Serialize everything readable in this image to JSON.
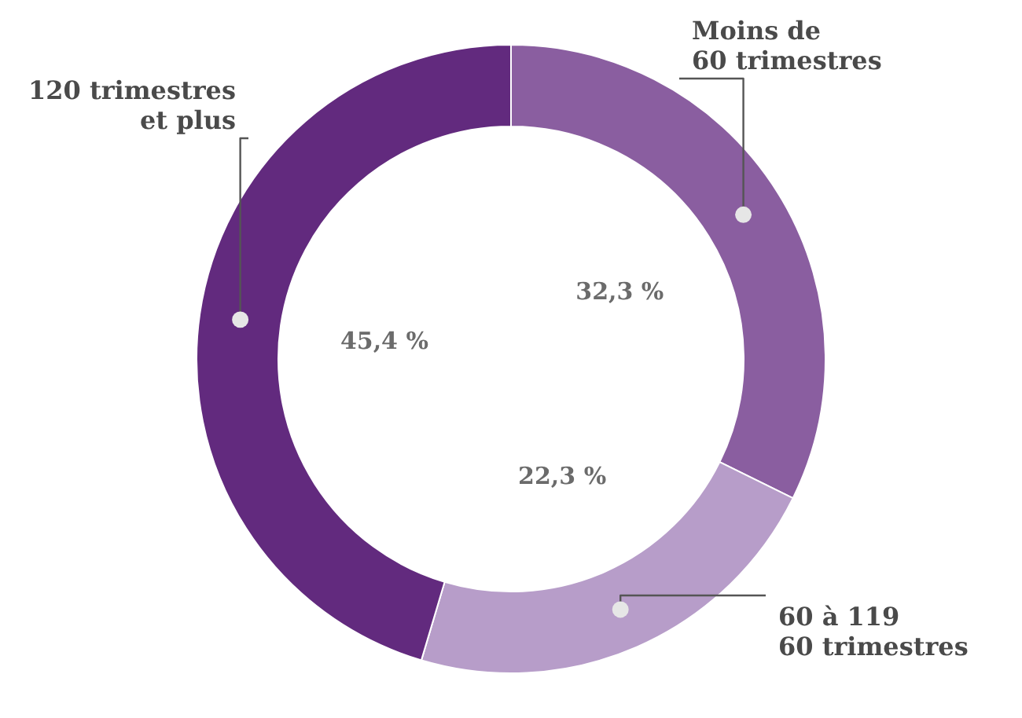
{
  "chart_data": {
    "type": "donut",
    "categories": [
      "Moins de\n60 trimestres",
      "60 à 119\n60 trimestres",
      "120 trimestres\net plus"
    ],
    "values": [
      32.3,
      22.3,
      45.4
    ],
    "value_labels": [
      "32,3 %",
      "22,3 %",
      "45,4 %"
    ],
    "colors": [
      "#8a5ea0",
      "#b79dc9",
      "#622a7e"
    ]
  }
}
